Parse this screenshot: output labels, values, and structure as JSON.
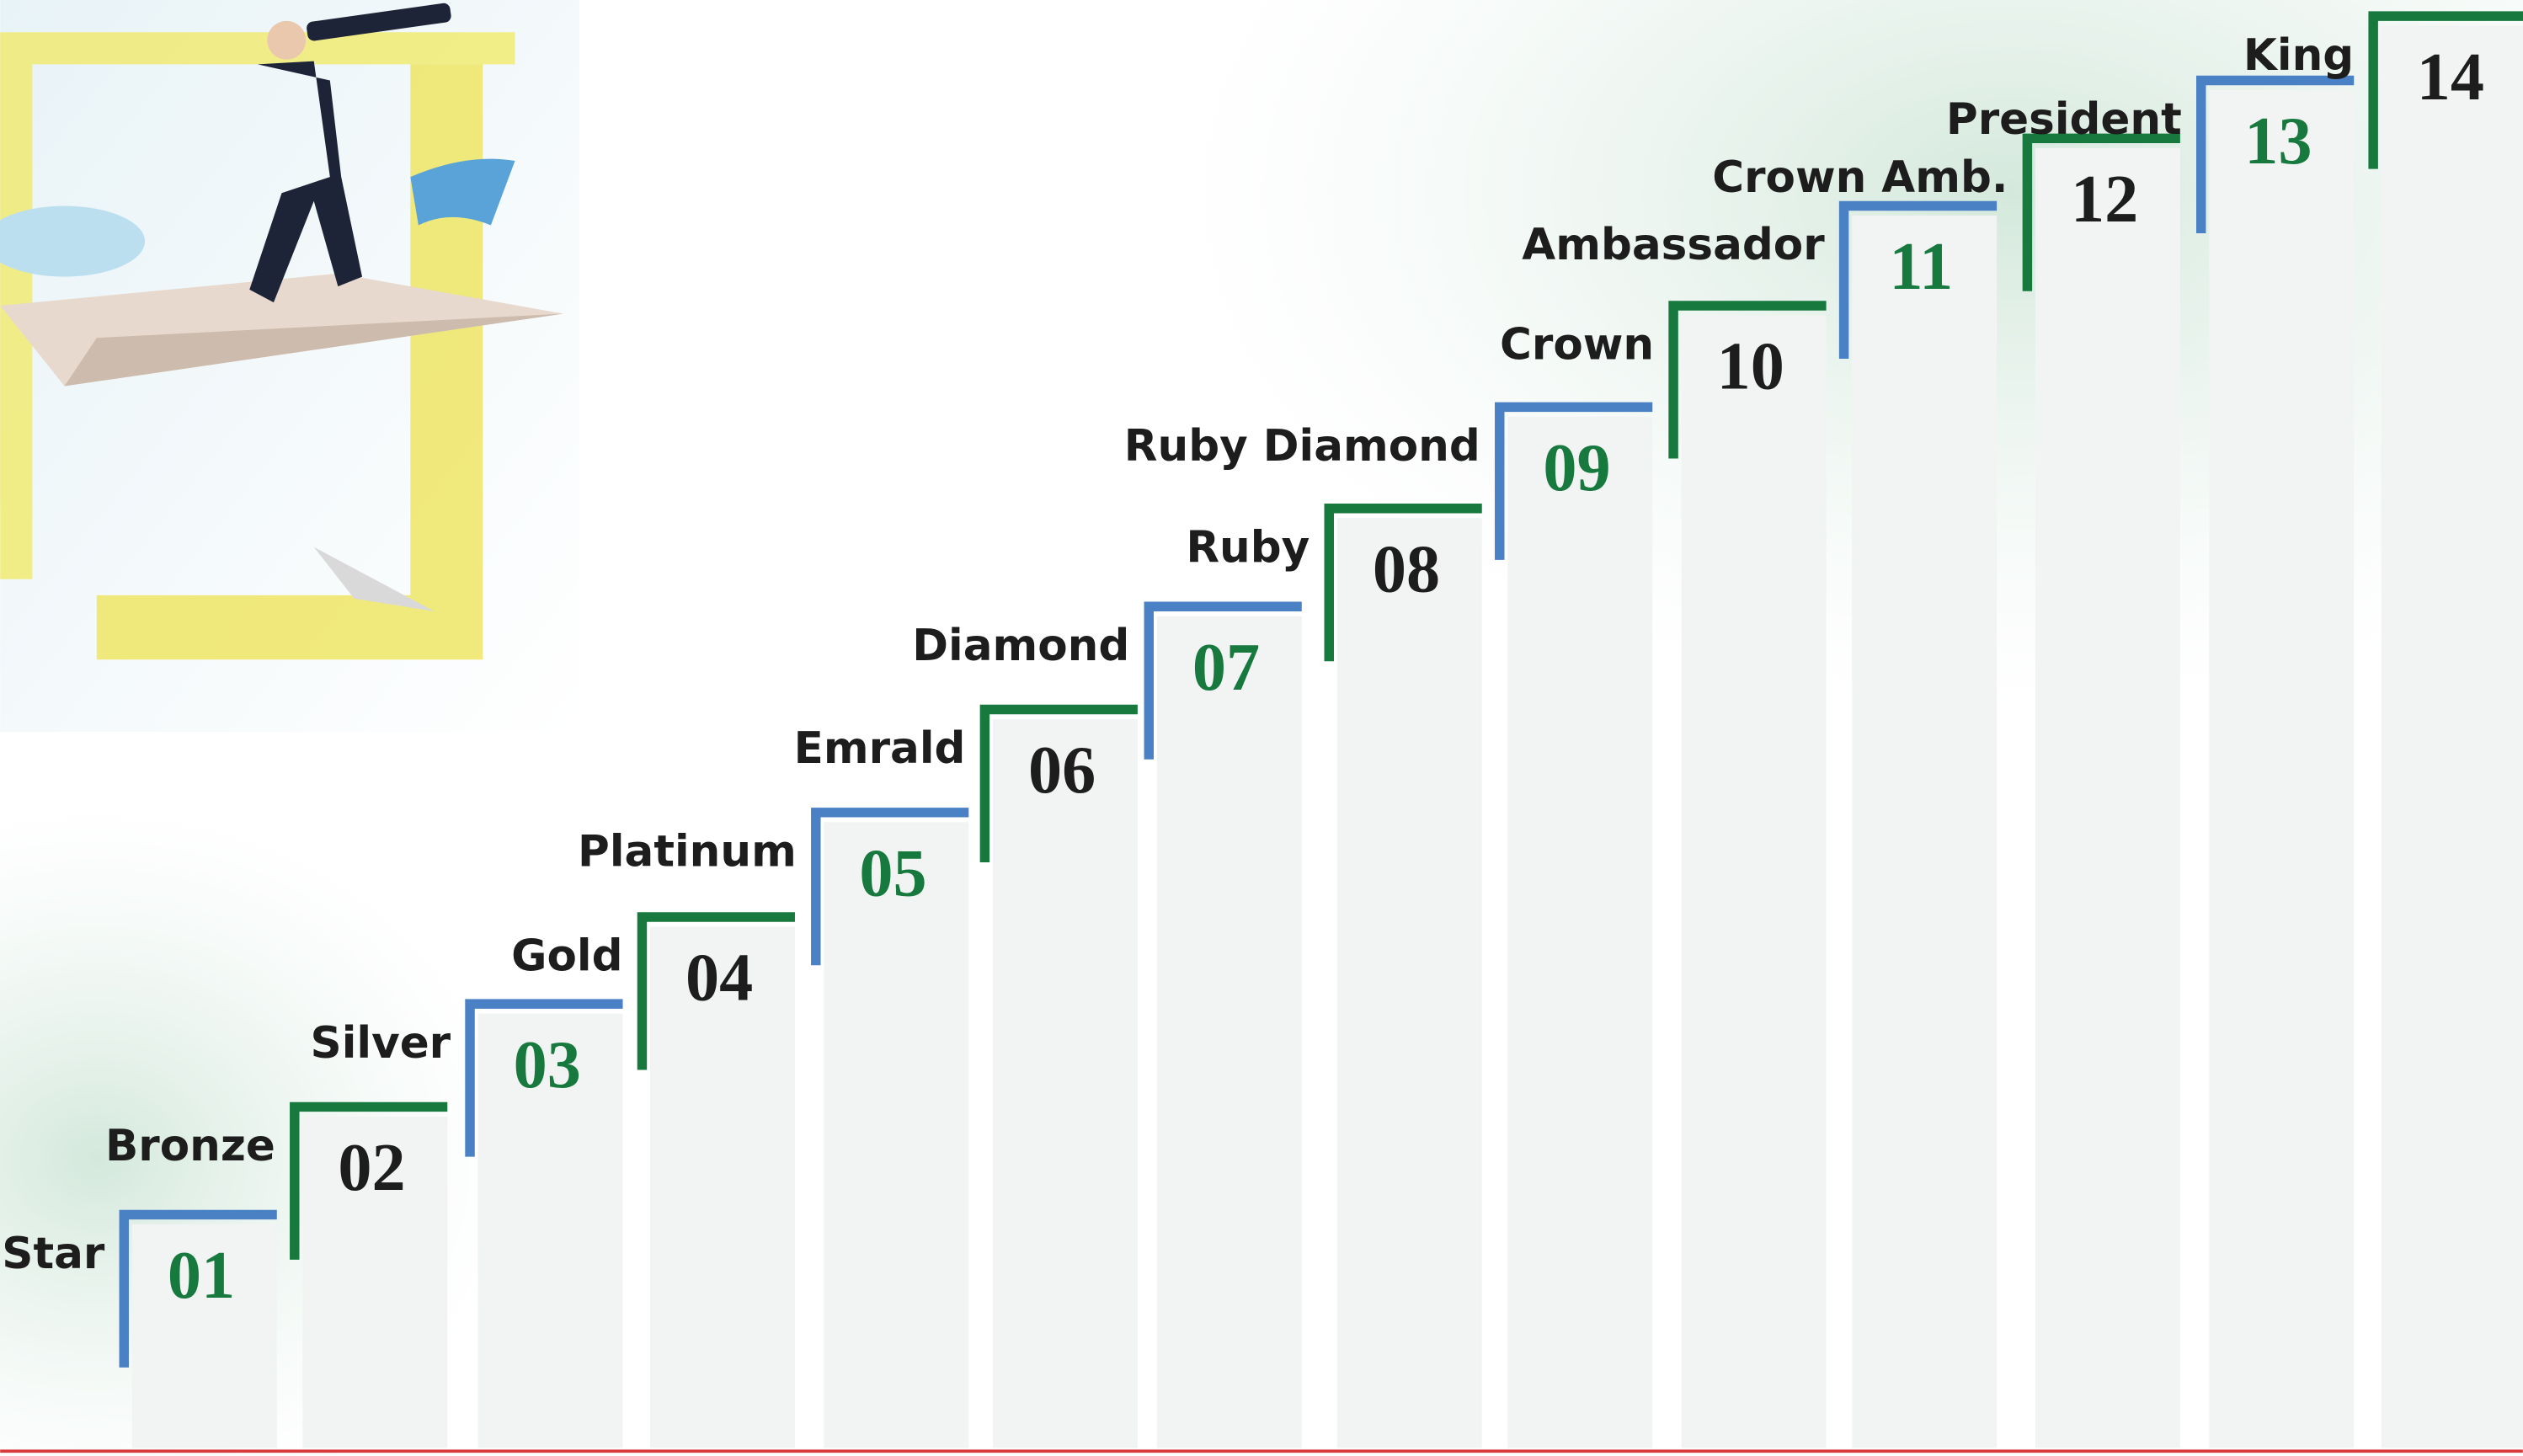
{
  "steps": [
    {
      "label": "Star",
      "number": "01"
    },
    {
      "label": "Bronze",
      "number": "02"
    },
    {
      "label": "Silver",
      "number": "03"
    },
    {
      "label": "Gold",
      "number": "04"
    },
    {
      "label": "Platinum",
      "number": "05"
    },
    {
      "label": "Emrald",
      "number": "06"
    },
    {
      "label": "Diamond",
      "number": "07"
    },
    {
      "label": "Ruby",
      "number": "08"
    },
    {
      "label": "Ruby Diamond",
      "number": "09"
    },
    {
      "label": "Crown",
      "number": "10"
    },
    {
      "label": "Ambassador",
      "number": "11"
    },
    {
      "label": "Crown Amb.",
      "number": "12"
    },
    {
      "label": "President",
      "number": "13"
    },
    {
      "label": "King",
      "number": "14"
    }
  ]
}
